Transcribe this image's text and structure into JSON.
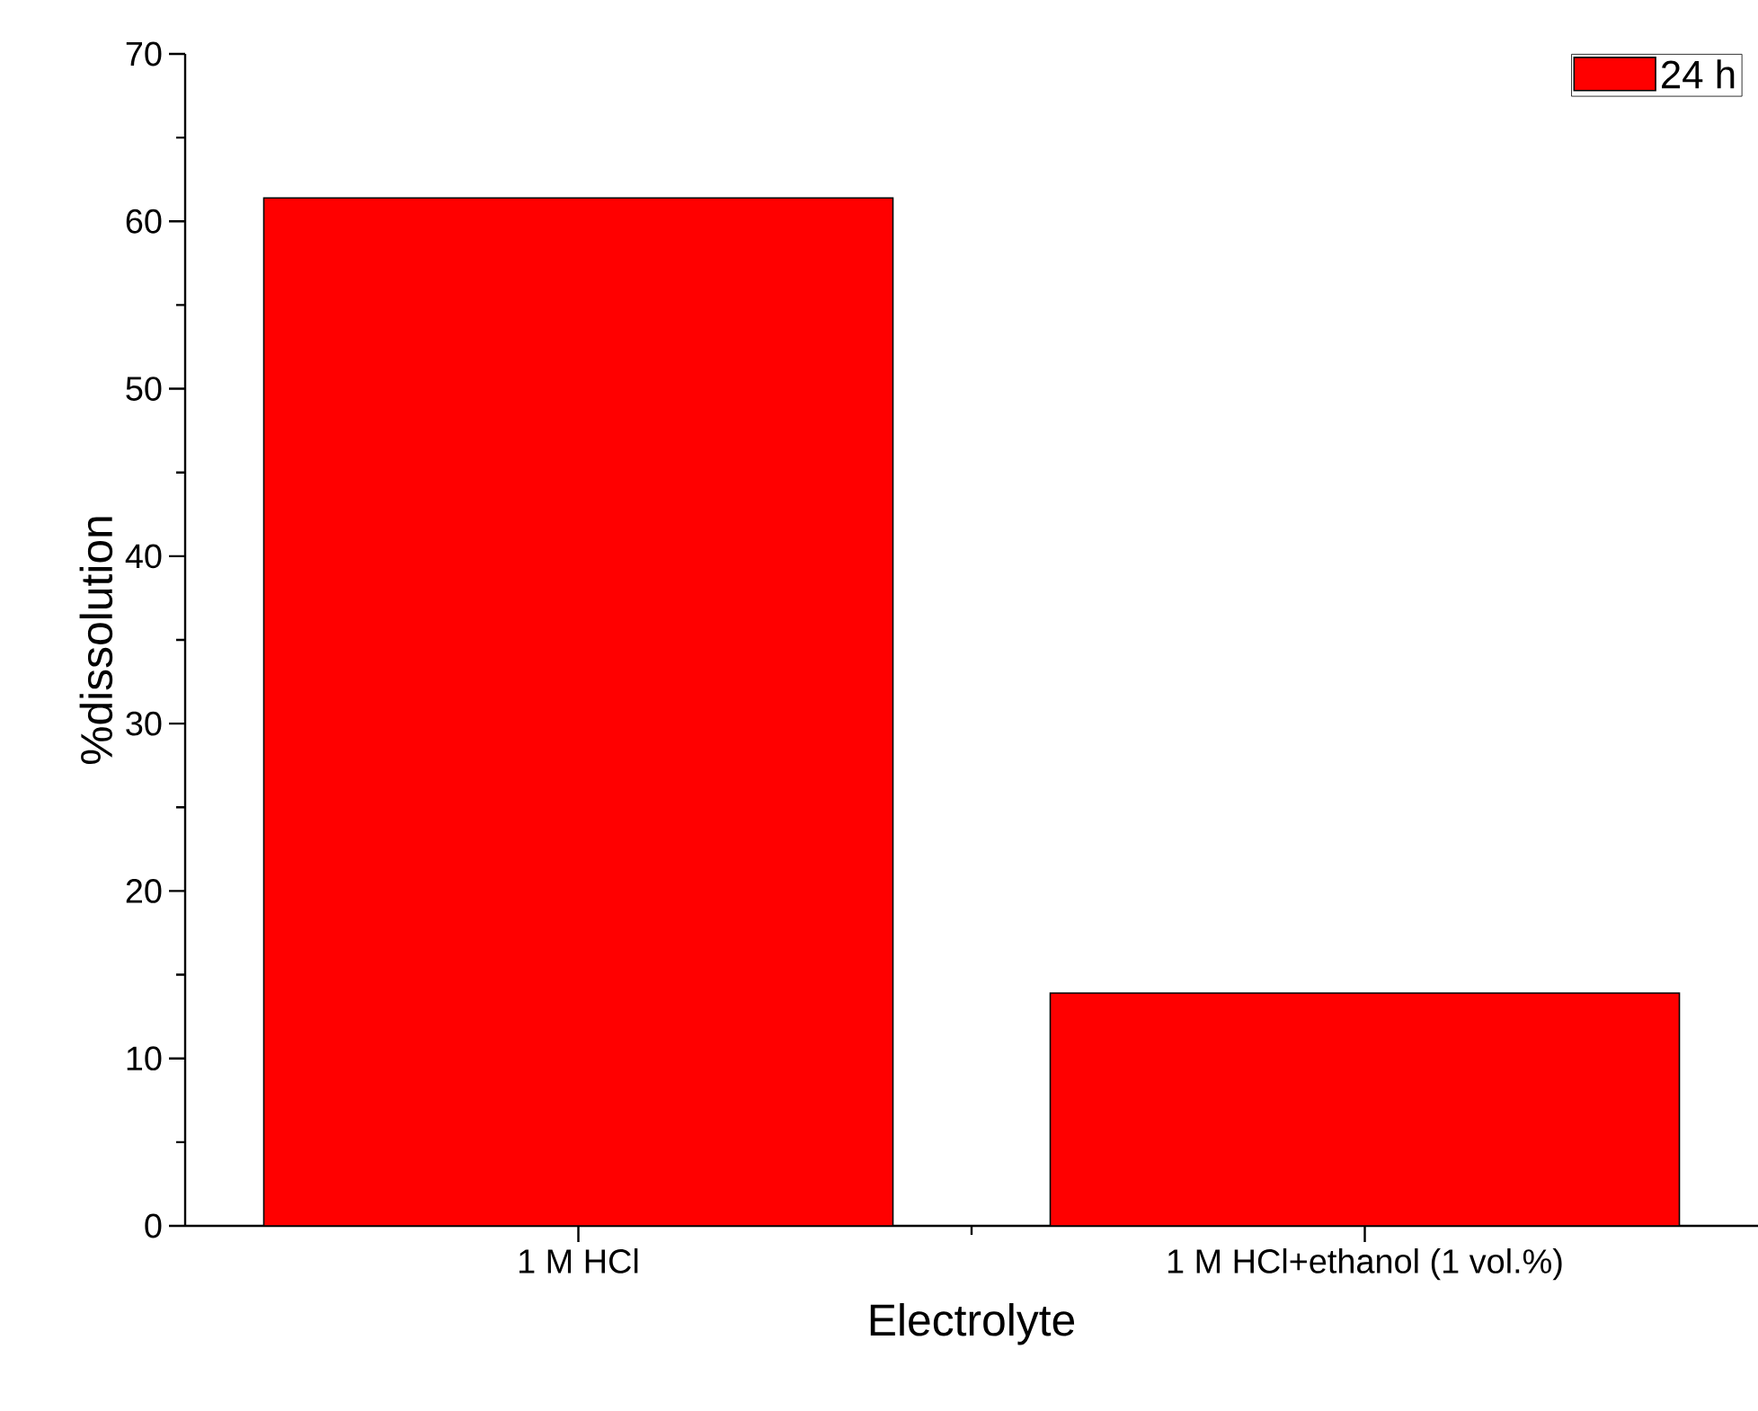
{
  "chart_data": {
    "type": "bar",
    "xlabel": "Electrolyte",
    "ylabel": "%dissolution",
    "categories": [
      "1 M HCl",
      "1 M HCl+ethanol (1 vol.%)"
    ],
    "series": [
      {
        "name": "24 h",
        "color": "#ff0000",
        "values": [
          61.4,
          13.9
        ]
      }
    ],
    "ylim": [
      0,
      70
    ],
    "yticks": [
      0,
      10,
      20,
      30,
      40,
      50,
      60,
      70
    ],
    "legend": "top right",
    "grid": false
  }
}
